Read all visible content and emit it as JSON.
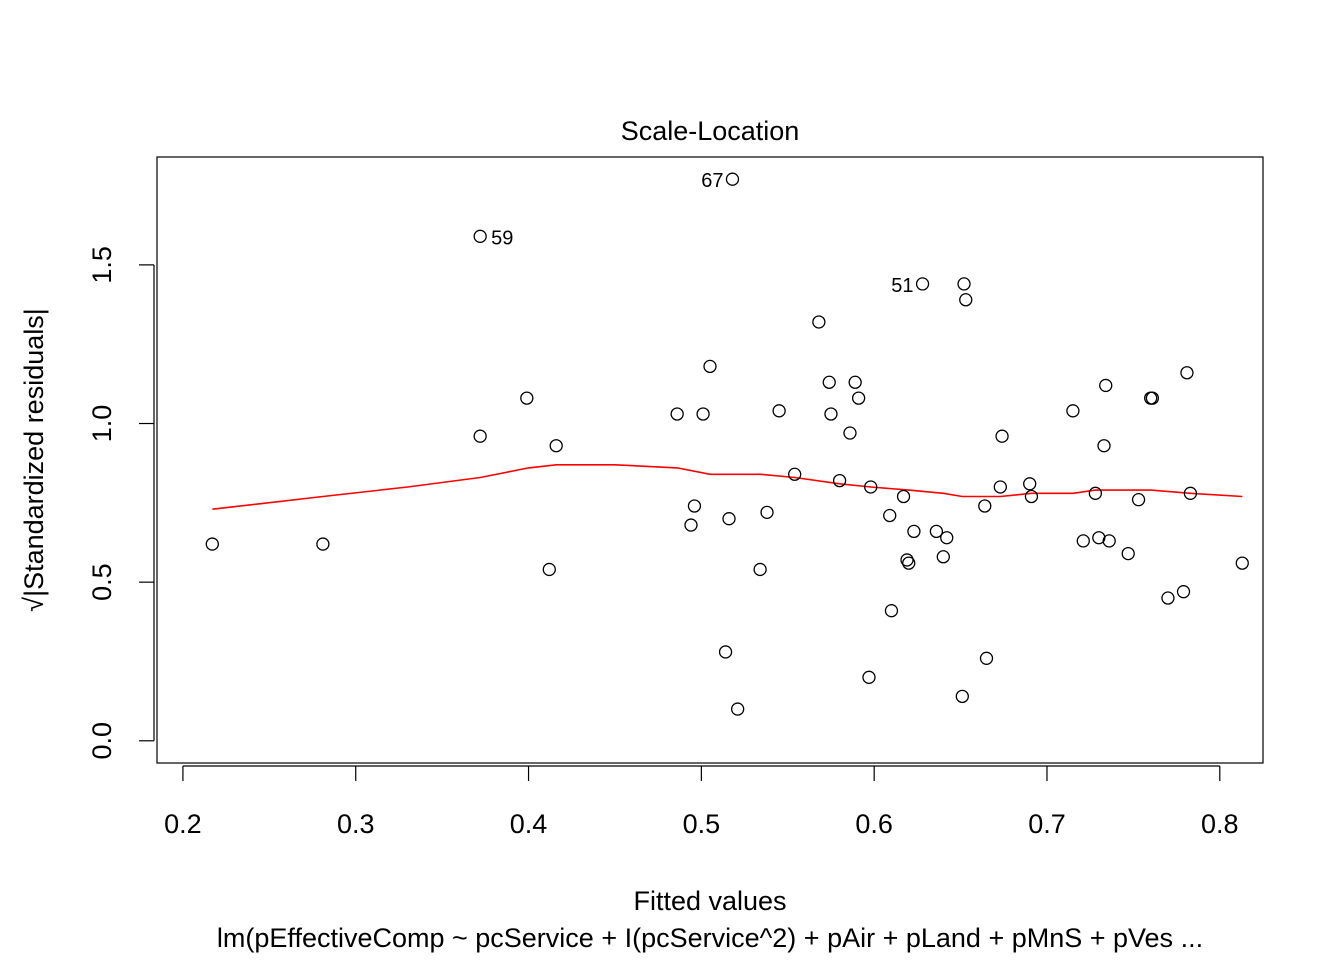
{
  "chart_data": {
    "type": "scatter",
    "title": "Scale-Location",
    "xlabel": "Fitted values",
    "ylabel": "√|Standardized residuals|",
    "subtitle": "lm(pEffectiveComp ~ pcService + I(pcService^2) + pAir + pLand + pMnS + pVes ...",
    "xlim": [
      0.185,
      0.825
    ],
    "ylim": [
      -0.07,
      1.84
    ],
    "x_ticks": [
      0.2,
      0.3,
      0.4,
      0.5,
      0.6,
      0.7,
      0.8
    ],
    "x_tick_labels": [
      "0.2",
      "0.3",
      "0.4",
      "0.5",
      "0.6",
      "0.7",
      "0.8"
    ],
    "y_ticks": [
      0.0,
      0.5,
      1.0,
      1.5
    ],
    "y_tick_labels": [
      "0.0",
      "0.5",
      "1.0",
      "1.5"
    ],
    "grid": false,
    "point_color": "#000000",
    "smooth_color": "#ff0000",
    "points": [
      {
        "x": 0.217,
        "y": 0.62
      },
      {
        "x": 0.281,
        "y": 0.62
      },
      {
        "x": 0.372,
        "y": 0.96
      },
      {
        "x": 0.372,
        "y": 1.59,
        "label": "59"
      },
      {
        "x": 0.399,
        "y": 1.08
      },
      {
        "x": 0.412,
        "y": 0.54
      },
      {
        "x": 0.416,
        "y": 0.93
      },
      {
        "x": 0.486,
        "y": 1.03
      },
      {
        "x": 0.494,
        "y": 0.68
      },
      {
        "x": 0.496,
        "y": 0.74
      },
      {
        "x": 0.501,
        "y": 1.03
      },
      {
        "x": 0.505,
        "y": 1.18
      },
      {
        "x": 0.514,
        "y": 0.28
      },
      {
        "x": 0.516,
        "y": 0.7
      },
      {
        "x": 0.518,
        "y": 1.77,
        "label": "67"
      },
      {
        "x": 0.521,
        "y": 0.1
      },
      {
        "x": 0.534,
        "y": 0.54
      },
      {
        "x": 0.538,
        "y": 0.72
      },
      {
        "x": 0.545,
        "y": 1.04
      },
      {
        "x": 0.554,
        "y": 0.84
      },
      {
        "x": 0.568,
        "y": 1.32
      },
      {
        "x": 0.574,
        "y": 1.13
      },
      {
        "x": 0.575,
        "y": 1.03
      },
      {
        "x": 0.58,
        "y": 0.82
      },
      {
        "x": 0.586,
        "y": 0.97
      },
      {
        "x": 0.589,
        "y": 1.13
      },
      {
        "x": 0.591,
        "y": 1.08
      },
      {
        "x": 0.597,
        "y": 0.2
      },
      {
        "x": 0.598,
        "y": 0.8
      },
      {
        "x": 0.609,
        "y": 0.71
      },
      {
        "x": 0.61,
        "y": 0.41
      },
      {
        "x": 0.617,
        "y": 0.77
      },
      {
        "x": 0.619,
        "y": 0.57
      },
      {
        "x": 0.62,
        "y": 0.56
      },
      {
        "x": 0.623,
        "y": 0.66
      },
      {
        "x": 0.628,
        "y": 1.44,
        "label": "51"
      },
      {
        "x": 0.636,
        "y": 0.66
      },
      {
        "x": 0.64,
        "y": 0.58
      },
      {
        "x": 0.642,
        "y": 0.64
      },
      {
        "x": 0.651,
        "y": 0.14
      },
      {
        "x": 0.652,
        "y": 1.44
      },
      {
        "x": 0.653,
        "y": 1.39
      },
      {
        "x": 0.664,
        "y": 0.74
      },
      {
        "x": 0.665,
        "y": 0.26
      },
      {
        "x": 0.673,
        "y": 0.8
      },
      {
        "x": 0.674,
        "y": 0.96
      },
      {
        "x": 0.69,
        "y": 0.81
      },
      {
        "x": 0.691,
        "y": 0.77
      },
      {
        "x": 0.715,
        "y": 1.04
      },
      {
        "x": 0.721,
        "y": 0.63
      },
      {
        "x": 0.728,
        "y": 0.78
      },
      {
        "x": 0.73,
        "y": 0.64
      },
      {
        "x": 0.733,
        "y": 0.93
      },
      {
        "x": 0.734,
        "y": 1.12
      },
      {
        "x": 0.736,
        "y": 0.63
      },
      {
        "x": 0.747,
        "y": 0.59
      },
      {
        "x": 0.753,
        "y": 0.76
      },
      {
        "x": 0.76,
        "y": 1.08
      },
      {
        "x": 0.761,
        "y": 1.08
      },
      {
        "x": 0.77,
        "y": 0.45
      },
      {
        "x": 0.779,
        "y": 0.47
      },
      {
        "x": 0.781,
        "y": 1.16
      },
      {
        "x": 0.783,
        "y": 0.78
      },
      {
        "x": 0.813,
        "y": 0.56
      }
    ],
    "smooth_line": [
      {
        "x": 0.217,
        "y": 0.73
      },
      {
        "x": 0.281,
        "y": 0.77
      },
      {
        "x": 0.33,
        "y": 0.8
      },
      {
        "x": 0.372,
        "y": 0.83
      },
      {
        "x": 0.4,
        "y": 0.86
      },
      {
        "x": 0.416,
        "y": 0.87
      },
      {
        "x": 0.45,
        "y": 0.87
      },
      {
        "x": 0.486,
        "y": 0.86
      },
      {
        "x": 0.505,
        "y": 0.84
      },
      {
        "x": 0.534,
        "y": 0.84
      },
      {
        "x": 0.554,
        "y": 0.83
      },
      {
        "x": 0.58,
        "y": 0.81
      },
      {
        "x": 0.598,
        "y": 0.8
      },
      {
        "x": 0.62,
        "y": 0.79
      },
      {
        "x": 0.64,
        "y": 0.78
      },
      {
        "x": 0.651,
        "y": 0.77
      },
      {
        "x": 0.673,
        "y": 0.77
      },
      {
        "x": 0.691,
        "y": 0.78
      },
      {
        "x": 0.715,
        "y": 0.78
      },
      {
        "x": 0.728,
        "y": 0.79
      },
      {
        "x": 0.76,
        "y": 0.79
      },
      {
        "x": 0.783,
        "y": 0.78
      },
      {
        "x": 0.813,
        "y": 0.77
      }
    ]
  }
}
